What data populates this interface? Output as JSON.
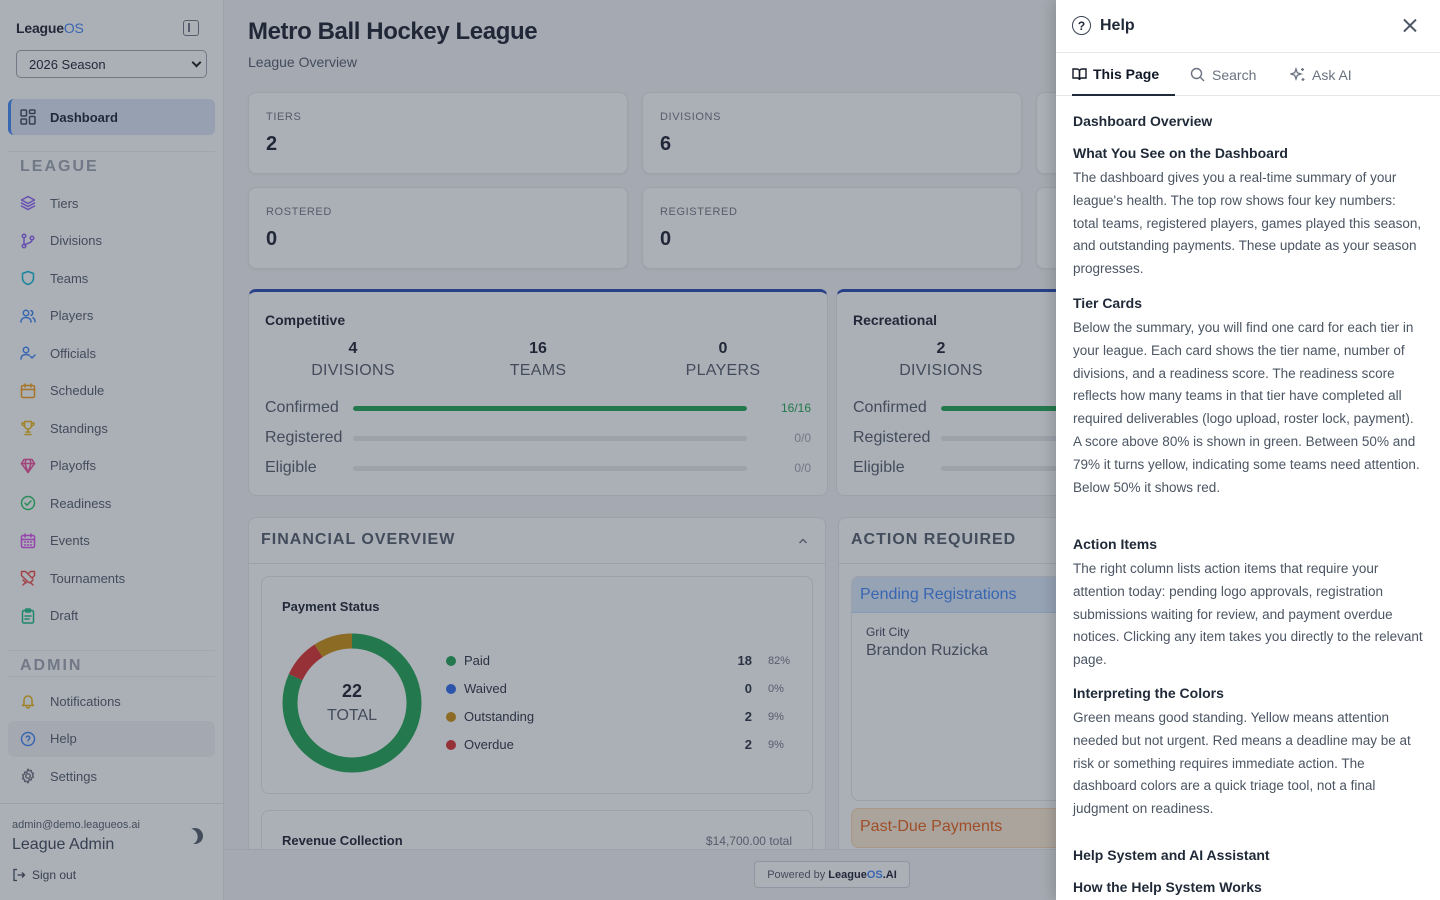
{
  "app": {
    "logo_main": "League",
    "logo_accent": "OS"
  },
  "season": {
    "selected": "2026 Season"
  },
  "sidebar": {
    "dashboard": "Dashboard",
    "league_label": "LEAGUE",
    "admin_label": "ADMIN",
    "league_items": [
      {
        "label": "Tiers",
        "icon": "layers-icon",
        "color": "#8b5cf6"
      },
      {
        "label": "Divisions",
        "icon": "git-branch-icon",
        "color": "#8b5cf6"
      },
      {
        "label": "Teams",
        "icon": "shield-icon",
        "color": "#06b6d4"
      },
      {
        "label": "Players",
        "icon": "users-icon",
        "color": "#3b82f6"
      },
      {
        "label": "Officials",
        "icon": "user-check-icon",
        "color": "#3b82f6"
      },
      {
        "label": "Schedule",
        "icon": "calendar-icon",
        "color": "#f59e0b"
      },
      {
        "label": "Standings",
        "icon": "trophy-icon",
        "color": "#eab308"
      },
      {
        "label": "Playoffs",
        "icon": "gem-icon",
        "color": "#ec4899"
      },
      {
        "label": "Readiness",
        "icon": "check-circle-icon",
        "color": "#22c55e"
      },
      {
        "label": "Events",
        "icon": "calendar-days-icon",
        "color": "#d946ef"
      },
      {
        "label": "Tournaments",
        "icon": "swords-icon",
        "color": "#ef4444"
      },
      {
        "label": "Draft",
        "icon": "clipboard-icon",
        "color": "#10b981"
      }
    ],
    "admin_items": [
      {
        "label": "Notifications",
        "icon": "bell-icon",
        "color": "#eab308"
      },
      {
        "label": "Help",
        "icon": "help-circle-icon",
        "color": "#3b82f6"
      },
      {
        "label": "Settings",
        "icon": "gear-icon",
        "color": "#6b7280"
      }
    ],
    "user_email": "admin@demo.leagueos.ai",
    "user_name": "League Admin",
    "sign_out": "Sign out"
  },
  "main": {
    "title": "Metro Ball Hockey League",
    "subtitle": "League Overview",
    "stats": [
      {
        "label": "TIERS",
        "value": "2"
      },
      {
        "label": "DIVISIONS",
        "value": "6"
      },
      {
        "label": "ROSTERED",
        "value": "0"
      },
      {
        "label": "REGISTERED",
        "value": "0"
      }
    ],
    "tiers": [
      {
        "name": "Competitive",
        "divisions": "4",
        "divisions_label": "DIVISIONS",
        "teams": "16",
        "teams_label": "TEAMS",
        "players": "0",
        "players_label": "PLAYERS",
        "rows": [
          {
            "label": "Confirmed",
            "ratio": "16/16",
            "fraction": 1.0
          },
          {
            "label": "Registered",
            "ratio": "0/0",
            "fraction": 0
          },
          {
            "label": "Eligible",
            "ratio": "0/0",
            "fraction": 0
          }
        ]
      },
      {
        "name": "Recreational",
        "divisions": "2",
        "divisions_label": "DIVISIONS",
        "rows": [
          {
            "label": "Confirmed",
            "fraction": 1.0
          },
          {
            "label": "Registered",
            "fraction": 0
          },
          {
            "label": "Eligible",
            "fraction": 0
          }
        ]
      }
    ],
    "financial": {
      "header": "FINANCIAL OVERVIEW",
      "payment_title": "Payment Status",
      "total": "22",
      "total_label": "TOTAL",
      "legend": [
        {
          "label": "Paid",
          "count": "18",
          "pct": "82%",
          "color": "#16a34a",
          "value": 18
        },
        {
          "label": "Waived",
          "count": "0",
          "pct": "0%",
          "color": "#2563eb",
          "value": 0
        },
        {
          "label": "Outstanding",
          "count": "2",
          "pct": "9%",
          "color": "#ca8a04",
          "value": 2
        },
        {
          "label": "Overdue",
          "count": "2",
          "pct": "9%",
          "color": "#dc2626",
          "value": 2
        }
      ],
      "revenue_title": "Revenue Collection",
      "revenue_total": "$14,700.00 total"
    },
    "actions": {
      "header": "ACTION REQUIRED",
      "pending_title": "Pending Registrations",
      "pending_team": "Grit City",
      "pending_name": "Brandon Ruzicka",
      "pastdue_title": "Past-Due Payments"
    },
    "powered_by": "Powered by",
    "powered_brand": "League",
    "powered_accent": "OS",
    "powered_suffix": ".AI"
  },
  "help": {
    "title": "Help",
    "tabs": [
      {
        "label": "This Page",
        "icon": "book-icon"
      },
      {
        "label": "Search",
        "icon": "search-icon"
      },
      {
        "label": "Ask AI",
        "icon": "sparkles-icon"
      }
    ],
    "heading": "Dashboard Overview",
    "sections": [
      {
        "title": "What You See on the Dashboard",
        "body": "The dashboard gives you a real-time summary of your league's health. The top row shows four key numbers: total teams, registered players, games played this season, and outstanding payments. These update as your season progresses."
      },
      {
        "title": "Tier Cards",
        "body": "Below the summary, you will find one card for each tier in your league. Each card shows the tier name, number of divisions, and a readiness score. The readiness score reflects how many teams in that tier have completed all required deliverables (logo upload, roster lock, payment). A score above 80% is shown in green. Between 50% and 79% it turns yellow, indicating some teams need attention. Below 50% it shows red."
      },
      {
        "title": "Action Items",
        "body": "The right column lists action items that require your attention today: pending logo approvals, registration submissions waiting for review, and payment overdue notices. Clicking any item takes you directly to the relevant page."
      },
      {
        "title": "Interpreting the Colors",
        "body": "Green means good standing. Yellow means attention needed but not urgent. Red means a deadline may be at risk or something requires immediate action. The dashboard colors are a quick triage tool, not a final judgment on readiness."
      }
    ],
    "heading2": "Help System and AI Assistant",
    "sub2": "How the Help System Works"
  }
}
